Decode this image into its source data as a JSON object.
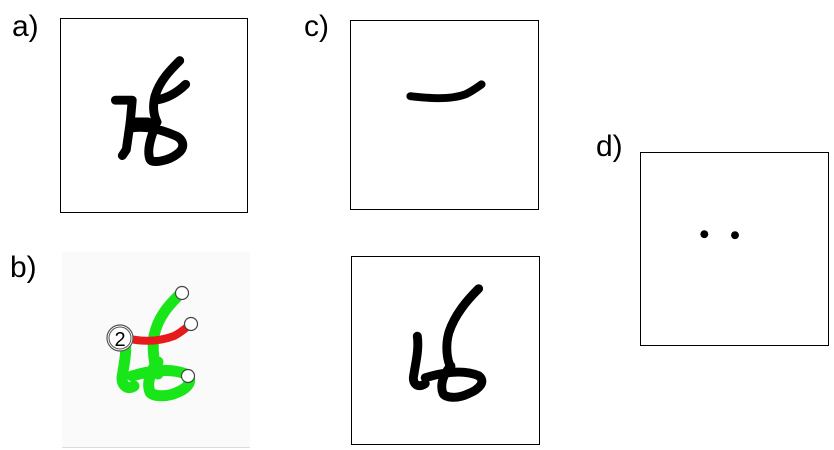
{
  "panels": {
    "a": {
      "label": "a)"
    },
    "b": {
      "label": "b)",
      "stroke_order_number": "2"
    },
    "c": {
      "label": "c)"
    },
    "d": {
      "label": "d)"
    }
  },
  "colors": {
    "ink": "#000000",
    "stroke_green": "#19e619",
    "stroke_red": "#e61a1a",
    "endpoint_fill": "#ffffff"
  }
}
